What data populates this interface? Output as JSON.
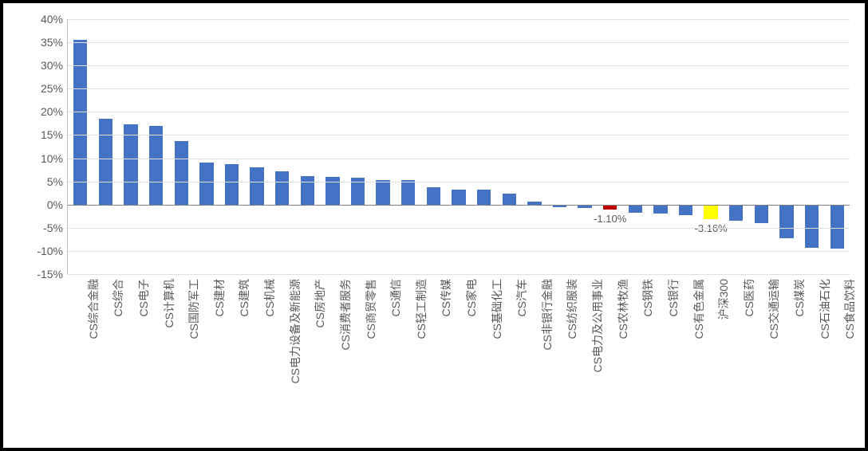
{
  "chart": {
    "type": "bar",
    "background_color": "#ffffff",
    "outer_background": "#000000",
    "grid_color": "#e0e0e0",
    "axis_color": "#bfbfbf",
    "zero_line_color": "#808080",
    "label_color": "#595959",
    "label_fontsize": 14,
    "data_label_fontsize": 13,
    "bar_width_ratio": 0.55,
    "ylim_min": -15,
    "ylim_max": 40,
    "ytick_step": 5,
    "y_tick_suffix": "%",
    "default_bar_color": "#4472c4",
    "categories": [
      "CS综合金融",
      "CS综合",
      "CS电子",
      "CS计算机",
      "CS国防军工",
      "CS建材",
      "CS建筑",
      "CS机械",
      "CS电力设备及新能源",
      "CS房地产",
      "CS消费者服务",
      "CS商贸零售",
      "CS通信",
      "CS轻工制造",
      "CS传媒",
      "CS家电",
      "CS基础化工",
      "CS汽车",
      "CS非银行金融",
      "CS纺织服装",
      "CS电力及公用事业",
      "CS农林牧渔",
      "CS钢铁",
      "CS银行",
      "CS有色金属",
      "沪深300",
      "CS医药",
      "CS交通运输",
      "CS煤炭",
      "CS石油石化",
      "CS食品饮料"
    ],
    "values": [
      35.5,
      18.5,
      17.3,
      17.0,
      13.7,
      9.0,
      8.7,
      8.0,
      7.2,
      6.2,
      6.0,
      5.8,
      5.3,
      5.2,
      3.8,
      3.3,
      3.2,
      2.4,
      0.7,
      -0.6,
      -0.8,
      -1.1,
      -1.7,
      -2.0,
      -2.2,
      -3.16,
      -3.5,
      -4.0,
      -7.2,
      -9.3,
      -9.5
    ],
    "special_bars": {
      "21": {
        "color": "#c00000",
        "label": "-1.10%"
      },
      "25": {
        "color": "#ffff00",
        "label": "-3.16%"
      }
    }
  }
}
